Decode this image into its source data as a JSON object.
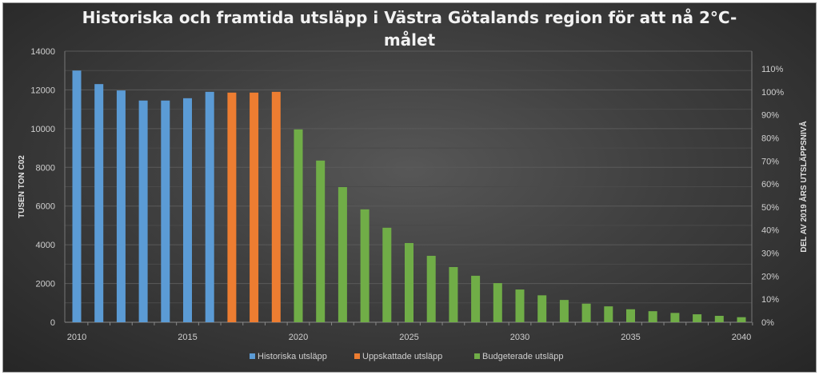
{
  "chart_data": {
    "type": "bar",
    "title_line1": "Historiska och framtida utsläpp i Västra Götalands region för att nå 2°C-",
    "title_line2": "målet",
    "ylabel": "TUSEN TON C02",
    "y2label": "DEL AV 2019 ÅRS UTSLÄPPSNIVÅ",
    "ylim": [
      0,
      14000
    ],
    "yticks": [
      0,
      2000,
      4000,
      6000,
      8000,
      10000,
      12000,
      14000
    ],
    "y2ticks": [
      "0%",
      "10%",
      "20%",
      "30%",
      "40%",
      "50%",
      "60%",
      "70%",
      "80%",
      "90%",
      "100%",
      "110%"
    ],
    "y2_reference_value": 11900,
    "xticks": [
      2010,
      2015,
      2020,
      2025,
      2030,
      2035,
      2040
    ],
    "grid": true,
    "legend_position": "bottom",
    "series": [
      {
        "name": "Historiska utsläpp",
        "color": "#5b9bd5",
        "x": [
          2010,
          2011,
          2012,
          2013,
          2014,
          2015,
          2016
        ],
        "values": [
          13000,
          12300,
          11970,
          11450,
          11450,
          11570,
          11900
        ]
      },
      {
        "name": "Uppskattade utsläpp",
        "color": "#ed7d31",
        "x": [
          2017,
          2018,
          2019
        ],
        "values": [
          11860,
          11860,
          11900
        ]
      },
      {
        "name": "Budgeterade utsläpp",
        "color": "#70ad47",
        "x": [
          2020,
          2021,
          2022,
          2023,
          2024,
          2025,
          2026,
          2027,
          2028,
          2029,
          2030,
          2031,
          2032,
          2033,
          2034,
          2035,
          2036,
          2037,
          2038,
          2039,
          2040
        ],
        "values": [
          9960,
          8350,
          6980,
          5830,
          4880,
          4090,
          3430,
          2850,
          2400,
          2020,
          1690,
          1390,
          1150,
          960,
          820,
          670,
          570,
          480,
          410,
          330,
          260
        ]
      }
    ]
  }
}
